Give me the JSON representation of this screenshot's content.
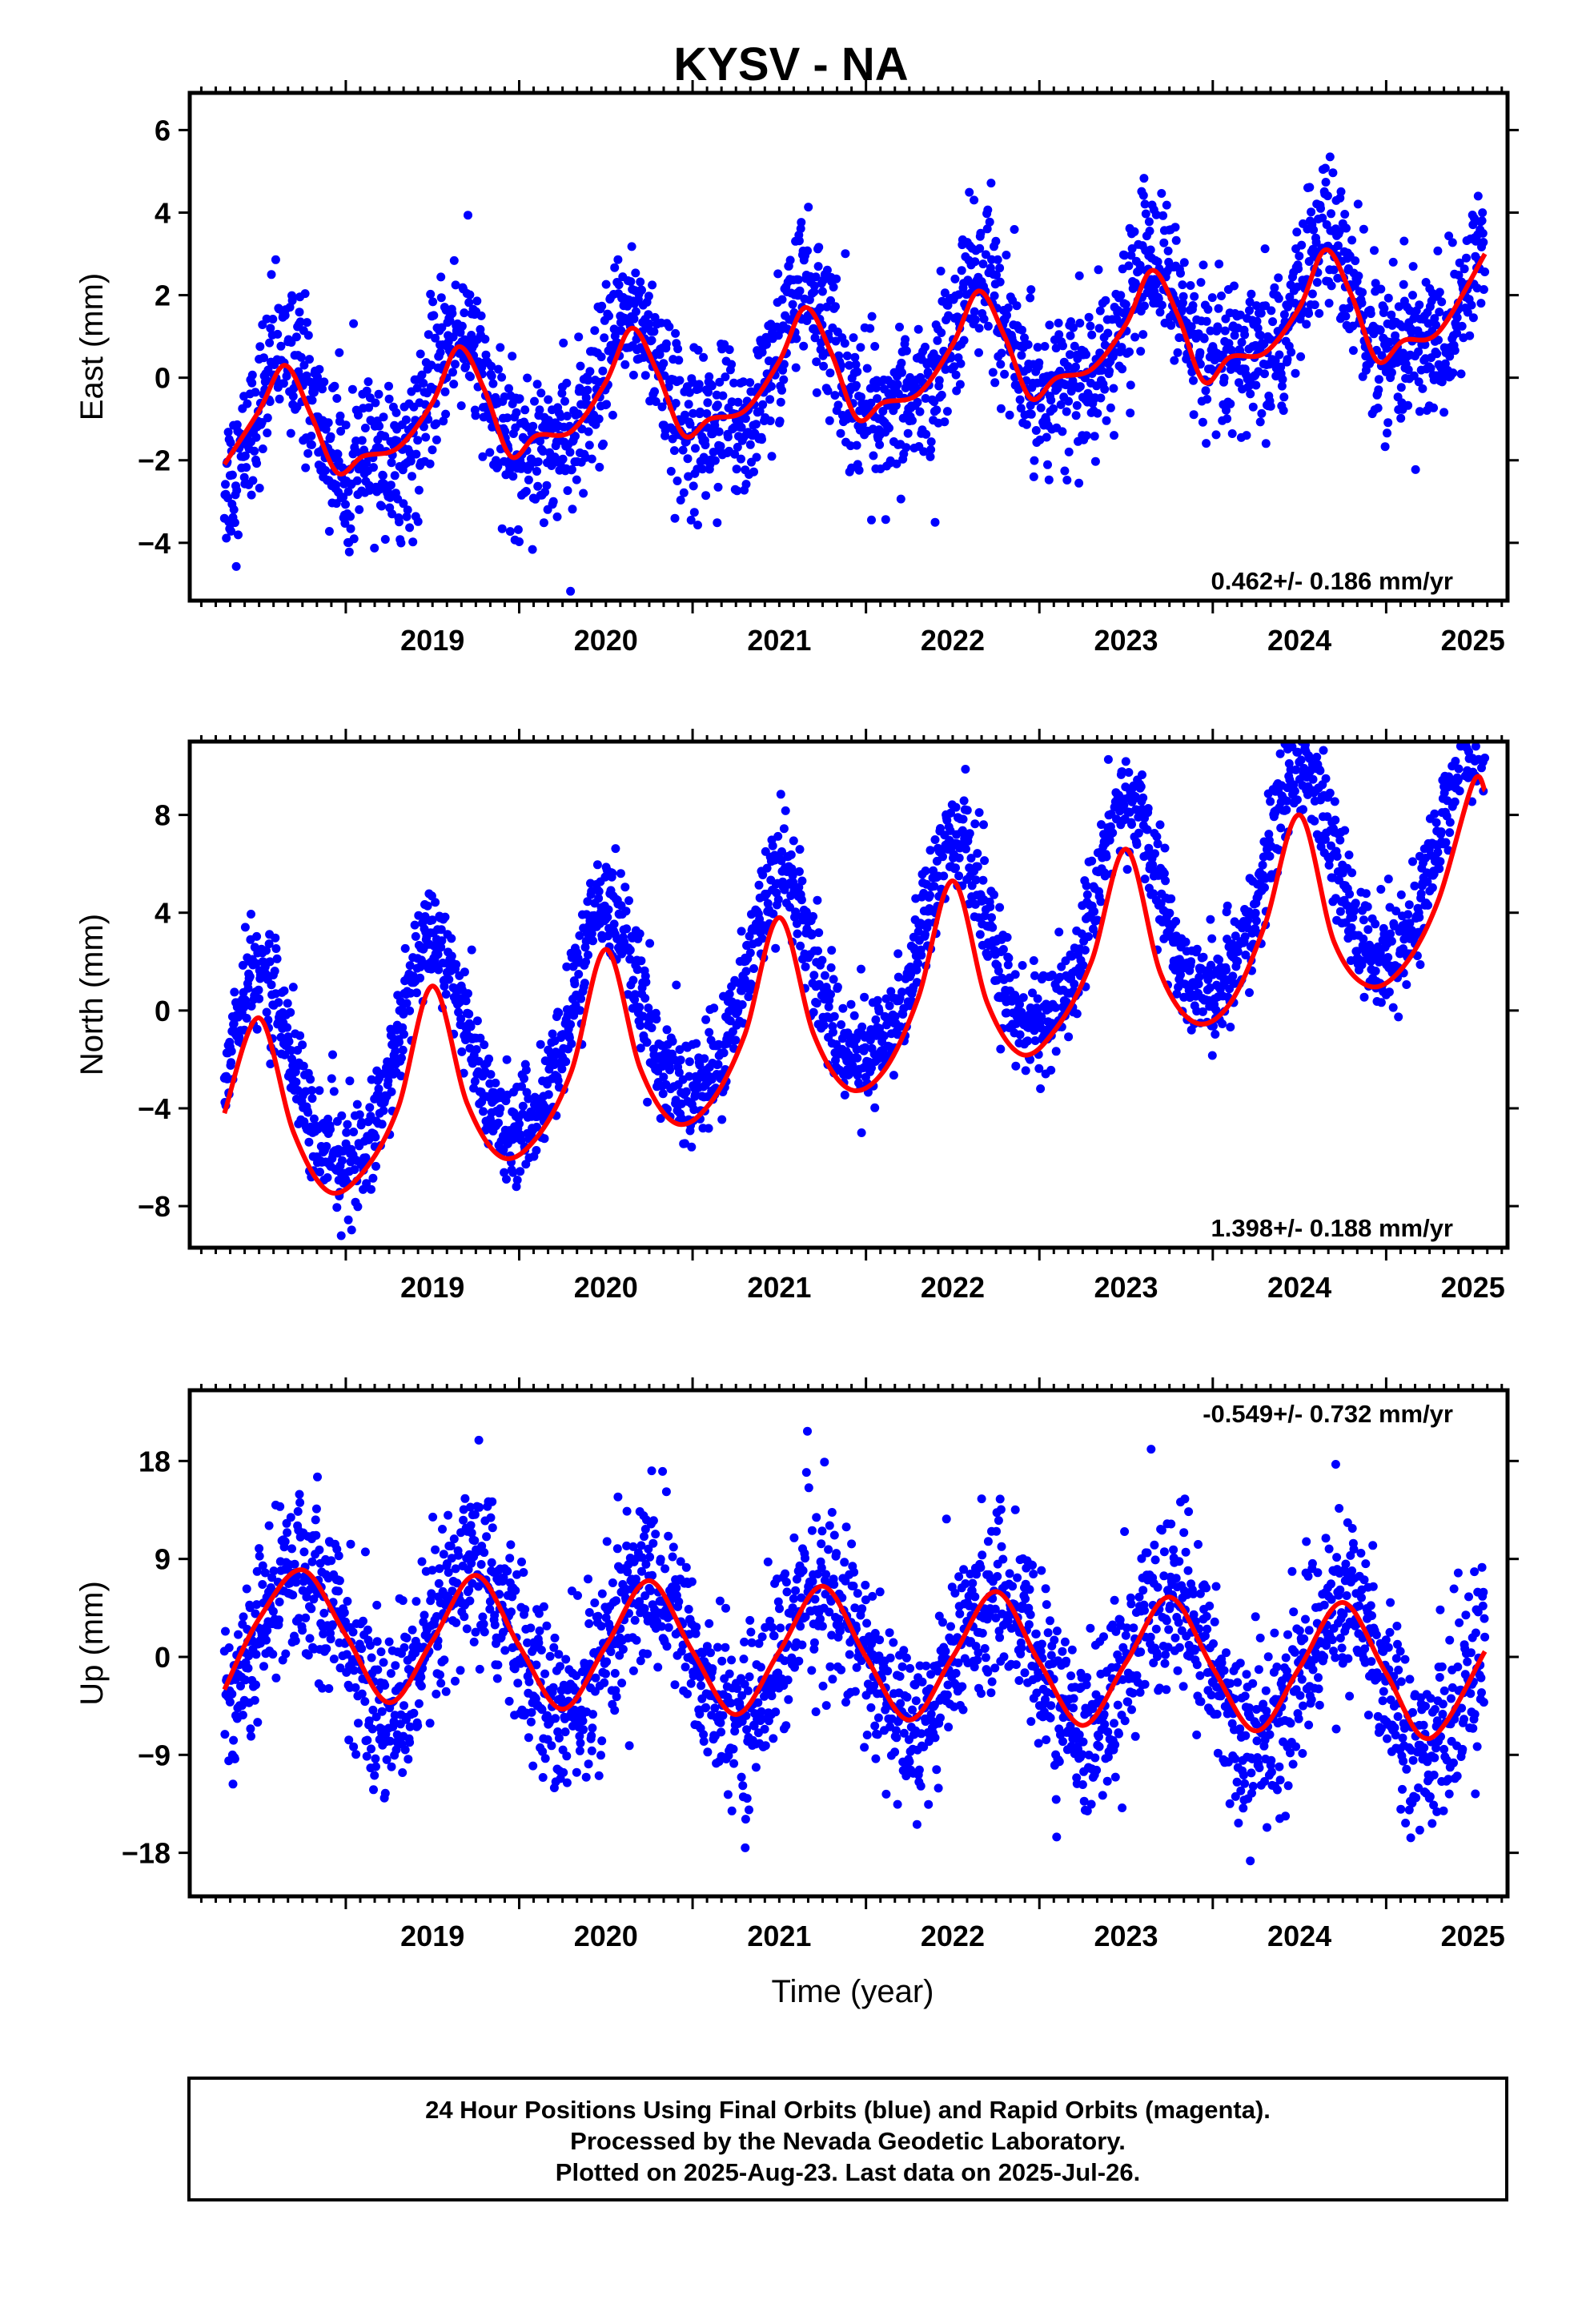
{
  "title": "KYSV - NA",
  "xlabel": "Time (year)",
  "footer": [
    "24 Hour Positions Using Final Orbits (blue) and Rapid Orbits (magenta).",
    "Processed by the Nevada Geodetic Laboratory.",
    "Plotted on 2025-Aug-23. Last data on 2025-Jul-26."
  ],
  "colors": {
    "points": "#0000ff",
    "fit": "#ff0000",
    "frame": "#000000"
  },
  "chart_data": [
    {
      "type": "scatter",
      "ylabel": "East (mm)",
      "rate_label": "0.462+/- 0.186 mm/yr",
      "rate_position": "bottom-right",
      "xlim": [
        2018.1,
        2025.7
      ],
      "ylim": [
        -5.4,
        6.9
      ],
      "yticks": [
        -4,
        -2,
        0,
        2,
        4,
        6
      ],
      "xticks": [
        2019,
        2020,
        2021,
        2022,
        2023,
        2024,
        2025
      ],
      "model": {
        "start": 2018.3,
        "end": 2025.57,
        "offset": -1.45,
        "rate": 0.462,
        "annual_amp": 1.45,
        "annual_peak": 0.65,
        "semi_amp": 0.55,
        "semi_peak": 0.65,
        "noise_sd": 0.9
      },
      "fit_curve": {
        "x": [
          2018.3,
          2018.5,
          2018.65,
          2018.8,
          2018.95,
          2019.1,
          2019.3,
          2019.5,
          2019.65,
          2019.8,
          2019.95,
          2020.1,
          2020.3,
          2020.5,
          2020.65,
          2020.8,
          2020.95,
          2021.1,
          2021.3,
          2021.5,
          2021.65,
          2021.8,
          2021.95,
          2022.1,
          2022.3,
          2022.5,
          2022.65,
          2022.8,
          2022.95,
          2023.1,
          2023.3,
          2023.5,
          2023.65,
          2023.8,
          2023.95,
          2024.1,
          2024.3,
          2024.5,
          2024.65,
          2024.8,
          2024.95,
          2025.1,
          2025.3,
          2025.57
        ],
        "y": [
          -2.1,
          -0.8,
          0.3,
          -0.9,
          -2.3,
          -1.9,
          -1.7,
          -0.6,
          0.75,
          -0.3,
          -1.9,
          -1.4,
          -1.3,
          -0.1,
          1.2,
          0.1,
          -1.4,
          -1.0,
          -0.8,
          0.4,
          1.7,
          0.6,
          -1.0,
          -0.6,
          -0.4,
          0.8,
          2.1,
          1.0,
          -0.5,
          0.0,
          0.2,
          1.3,
          2.6,
          1.5,
          -0.1,
          0.5,
          0.6,
          1.7,
          3.1,
          2.0,
          0.4,
          0.9,
          1.1,
          3.0
        ]
      }
    },
    {
      "type": "scatter",
      "ylabel": "North (mm)",
      "rate_label": "1.398+/- 0.188 mm/yr",
      "rate_position": "bottom-right",
      "xlim": [
        2018.1,
        2025.7
      ],
      "ylim": [
        -9.7,
        11.0
      ],
      "yticks": [
        -8,
        -4,
        0,
        4,
        8
      ],
      "xticks": [
        2019,
        2020,
        2021,
        2022,
        2023,
        2024,
        2025
      ],
      "model": {
        "start": 2018.3,
        "end": 2025.57,
        "offset": -3.5,
        "rate": 1.398,
        "annual_amp": 4.2,
        "annual_peak": 0.5,
        "semi_amp": 0.6,
        "semi_peak": 0.5,
        "noise_sd": 1.1
      },
      "fit_curve": {
        "x": [
          2018.3,
          2018.5,
          2018.7,
          2018.9,
          2019.1,
          2019.3,
          2019.5,
          2019.7,
          2019.9,
          2020.1,
          2020.3,
          2020.5,
          2020.7,
          2020.9,
          2021.1,
          2021.3,
          2021.5,
          2021.7,
          2021.9,
          2022.1,
          2022.3,
          2022.5,
          2022.7,
          2022.9,
          2023.1,
          2023.3,
          2023.5,
          2023.7,
          2023.9,
          2024.1,
          2024.3,
          2024.5,
          2024.7,
          2024.9,
          2025.1,
          2025.3,
          2025.5,
          2025.57
        ],
        "y": [
          -4.2,
          -0.3,
          -5.0,
          -7.4,
          -6.6,
          -4.0,
          1.0,
          -3.8,
          -6.0,
          -5.2,
          -2.5,
          2.5,
          -2.4,
          -4.6,
          -3.8,
          -1.0,
          3.8,
          -1.0,
          -3.2,
          -2.5,
          0.5,
          5.3,
          0.3,
          -1.8,
          -0.7,
          2.0,
          6.6,
          1.5,
          -0.5,
          0.3,
          3.5,
          8.0,
          2.8,
          1.0,
          1.8,
          4.5,
          9.3,
          9.0
        ]
      }
    },
    {
      "type": "scatter",
      "ylabel": "Up (mm)",
      "rate_label": "-0.549+/- 0.732 mm/yr",
      "rate_position": "top-right",
      "xlim": [
        2018.1,
        2025.7
      ],
      "ylim": [
        -22,
        24.5
      ],
      "yticks": [
        -18,
        -9,
        0,
        9,
        18
      ],
      "xticks": [
        2019,
        2020,
        2021,
        2022,
        2023,
        2024,
        2025
      ],
      "model": {
        "start": 2018.3,
        "end": 2025.57,
        "offset": 2.0,
        "rate": -0.549,
        "annual_amp": 6.2,
        "annual_peak": 0.75,
        "semi_amp": 0.0,
        "semi_peak": 0.0,
        "noise_sd": 4.0
      },
      "fit_curve": {
        "x": [
          2018.3,
          2018.5,
          2018.75,
          2019.0,
          2019.25,
          2019.5,
          2019.75,
          2020.0,
          2020.25,
          2020.5,
          2020.75,
          2021.0,
          2021.25,
          2021.5,
          2021.75,
          2022.0,
          2022.25,
          2022.5,
          2022.75,
          2023.0,
          2023.25,
          2023.5,
          2023.75,
          2024.0,
          2024.25,
          2024.5,
          2024.75,
          2025.0,
          2025.25,
          2025.57
        ],
        "y": [
          -3.0,
          3.5,
          8.0,
          2.0,
          -4.2,
          1.5,
          7.5,
          1.0,
          -4.8,
          1.0,
          7.0,
          0.5,
          -5.3,
          0.5,
          6.5,
          0.0,
          -5.8,
          0.0,
          6.0,
          -0.5,
          -6.3,
          -0.5,
          5.5,
          -1.0,
          -6.8,
          -1.0,
          5.0,
          -1.5,
          -7.5,
          0.5
        ]
      }
    }
  ]
}
